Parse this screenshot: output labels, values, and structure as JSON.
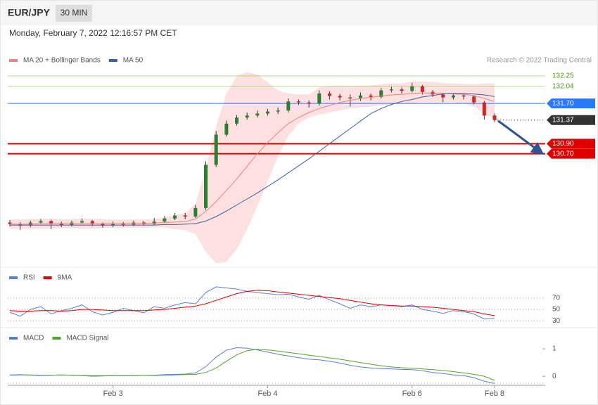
{
  "header": {
    "symbol": "EUR/JPY",
    "interval": "30 MIN",
    "timestamp": "Monday, February 7, 2022 12:16:57 PM CET"
  },
  "chart_data": [
    {
      "type": "candlestick",
      "source": "Research © 2022 Trading Central",
      "ylim": [
        128.47,
        132.71
      ],
      "up_color": "#2e7d32",
      "down_color": "#c62828",
      "wick_color": "#333333",
      "open": [
        129.33,
        129.3,
        129.27,
        129.33,
        129.36,
        129.31,
        129.28,
        129.33,
        129.36,
        129.3,
        129.27,
        129.31,
        129.29,
        129.33,
        129.3,
        129.35,
        129.41,
        129.47,
        129.45,
        129.62,
        130.48,
        131.08,
        131.3,
        131.42,
        131.46,
        131.5,
        131.54,
        131.56,
        131.74,
        131.72,
        131.7,
        131.9,
        131.85,
        131.82,
        131.8,
        131.86,
        131.83,
        131.96,
        131.98,
        131.95,
        132.04,
        131.93,
        131.88,
        131.82,
        131.86,
        131.84,
        131.72,
        131.46
      ],
      "high": [
        129.38,
        129.34,
        129.37,
        129.4,
        129.39,
        129.35,
        129.37,
        129.41,
        129.38,
        129.33,
        129.35,
        129.34,
        129.37,
        129.36,
        129.42,
        129.46,
        129.52,
        129.52,
        129.68,
        130.55,
        131.15,
        131.36,
        131.47,
        131.52,
        131.56,
        131.59,
        131.62,
        131.8,
        131.78,
        131.76,
        131.96,
        131.94,
        131.89,
        131.88,
        131.92,
        131.9,
        132.01,
        132.03,
        132.02,
        132.11,
        132.07,
        131.97,
        131.91,
        131.9,
        131.89,
        131.87,
        131.75,
        131.5
      ],
      "low": [
        129.25,
        129.18,
        129.24,
        129.3,
        129.2,
        129.24,
        129.25,
        129.3,
        129.26,
        129.23,
        129.24,
        129.25,
        129.26,
        129.27,
        129.28,
        129.33,
        129.38,
        129.4,
        129.42,
        129.58,
        130.44,
        131.04,
        131.26,
        131.38,
        131.42,
        131.46,
        131.49,
        131.52,
        131.67,
        131.62,
        131.66,
        131.78,
        131.76,
        131.64,
        131.75,
        131.76,
        131.8,
        131.92,
        131.9,
        131.92,
        131.88,
        131.83,
        131.72,
        131.78,
        131.78,
        131.68,
        131.38,
        131.33
      ],
      "close": [
        129.3,
        129.27,
        129.33,
        129.36,
        129.31,
        129.28,
        129.33,
        129.36,
        129.3,
        129.27,
        129.31,
        129.29,
        129.33,
        129.3,
        129.35,
        129.41,
        129.47,
        129.45,
        129.62,
        130.48,
        131.08,
        131.3,
        131.42,
        131.46,
        131.5,
        131.54,
        131.56,
        131.74,
        131.72,
        131.7,
        131.9,
        131.85,
        131.82,
        131.8,
        131.86,
        131.83,
        131.96,
        131.98,
        131.95,
        132.04,
        131.93,
        131.88,
        131.82,
        131.86,
        131.84,
        131.72,
        131.46,
        131.37
      ],
      "series": [
        {
          "name": "MA 20 + Bollinger Bands",
          "color": "#f08080",
          "band_color": "#fde0e0",
          "values": [
            129.3,
            129.3,
            129.3,
            129.31,
            129.31,
            129.31,
            129.31,
            129.31,
            129.31,
            129.31,
            129.31,
            129.31,
            129.31,
            129.31,
            129.32,
            129.33,
            129.34,
            129.35,
            129.4,
            129.55,
            129.75,
            129.97,
            130.2,
            130.45,
            130.7,
            130.92,
            131.12,
            131.3,
            131.42,
            131.52,
            131.6,
            131.66,
            131.72,
            131.76,
            131.8,
            131.82,
            131.85,
            131.87,
            131.88,
            131.9,
            131.91,
            131.91,
            131.9,
            131.89,
            131.88,
            131.86,
            131.8,
            131.74
          ],
          "upper": [
            129.4,
            129.39,
            129.4,
            129.41,
            129.41,
            129.4,
            129.4,
            129.41,
            129.41,
            129.4,
            129.39,
            129.39,
            129.39,
            129.39,
            129.4,
            129.43,
            129.48,
            129.52,
            129.7,
            130.4,
            131.25,
            131.9,
            132.25,
            132.32,
            132.28,
            132.12,
            131.96,
            131.9,
            131.88,
            131.88,
            132.02,
            132.05,
            132.06,
            132.05,
            132.06,
            132.06,
            132.08,
            132.1,
            132.1,
            132.14,
            132.14,
            132.13,
            132.11,
            132.1,
            132.09,
            132.08,
            132.1,
            132.1
          ],
          "lower": [
            129.2,
            129.21,
            129.2,
            129.21,
            129.21,
            129.22,
            129.22,
            129.21,
            129.21,
            129.22,
            129.23,
            129.23,
            129.23,
            129.23,
            129.24,
            129.23,
            129.2,
            129.18,
            129.1,
            128.75,
            128.52,
            128.55,
            128.8,
            129.2,
            129.65,
            130.15,
            130.65,
            131.05,
            131.3,
            131.42,
            131.48,
            131.52,
            131.56,
            131.6,
            131.62,
            131.64,
            131.66,
            131.68,
            131.7,
            131.7,
            131.72,
            131.72,
            131.72,
            131.72,
            131.7,
            131.64,
            131.5,
            131.4
          ]
        },
        {
          "name": "MA 50",
          "color": "#3a5f9a",
          "values": [
            129.28,
            129.28,
            129.28,
            129.28,
            129.28,
            129.28,
            129.28,
            129.28,
            129.28,
            129.28,
            129.28,
            129.28,
            129.28,
            129.28,
            129.28,
            129.29,
            129.29,
            129.3,
            129.31,
            129.36,
            129.45,
            129.56,
            129.68,
            129.8,
            129.92,
            130.05,
            130.18,
            130.32,
            130.46,
            130.6,
            130.75,
            130.9,
            131.05,
            131.2,
            131.35,
            131.5,
            131.6,
            131.68,
            131.74,
            131.78,
            131.83,
            131.86,
            131.89,
            131.9,
            131.9,
            131.89,
            131.87,
            131.84
          ]
        }
      ],
      "levels": [
        {
          "value": 132.25,
          "color": "#8bc34a",
          "label_style": "plain"
        },
        {
          "value": 132.04,
          "color": "#8bc34a",
          "label_style": "plain"
        },
        {
          "value": 131.7,
          "label": "131.70",
          "color": "#2979ff",
          "label_style": "box"
        },
        {
          "value": 130.9,
          "label": "130.90",
          "color": "#e00000",
          "label_style": "box"
        },
        {
          "value": 130.7,
          "label": "130.70",
          "color": "#e00000",
          "label_style": "box"
        }
      ],
      "last_color": "#333333",
      "arrow_color": "#2d5590"
    },
    {
      "type": "line",
      "ylim": [
        19,
        121
      ],
      "yticks": [
        30,
        50,
        70
      ],
      "grid": true,
      "series": [
        {
          "name": "RSI",
          "color": "#5b7fd6",
          "values": [
            45,
            38,
            50,
            55,
            42,
            48,
            52,
            58,
            46,
            40,
            45,
            52,
            48,
            44,
            55,
            52,
            58,
            62,
            60,
            80,
            90,
            88,
            86,
            82,
            80,
            78,
            76,
            77,
            72,
            68,
            75,
            67,
            60,
            52,
            58,
            55,
            58,
            57,
            55,
            58,
            50,
            47,
            43,
            48,
            46,
            42,
            33,
            34
          ]
        },
        {
          "name": "9MA",
          "color": "#e00000",
          "values": [
            48,
            47,
            47,
            48,
            48,
            47,
            48,
            50,
            50,
            49,
            48,
            48,
            48,
            48,
            49,
            50,
            52,
            54,
            56,
            60,
            66,
            72,
            78,
            82,
            84,
            83,
            81,
            79,
            77,
            75,
            73,
            71,
            69,
            66,
            63,
            60,
            58,
            57,
            56,
            56,
            55,
            54,
            52,
            50,
            48,
            46,
            42,
            39
          ]
        }
      ]
    },
    {
      "type": "line",
      "ylim": [
        -0.33,
        1.72
      ],
      "yticks": [
        0,
        1
      ],
      "grid": false,
      "x": [
        null,
        null,
        null,
        null,
        null,
        null,
        null,
        null,
        null,
        null,
        "Feb 3",
        null,
        null,
        null,
        null,
        null,
        null,
        null,
        null,
        null,
        null,
        null,
        null,
        null,
        null,
        "Feb 4",
        null,
        null,
        null,
        null,
        null,
        null,
        null,
        null,
        null,
        null,
        null,
        null,
        null,
        "Feb 6",
        null,
        null,
        null,
        null,
        null,
        null,
        null,
        "Feb 8"
      ],
      "series": [
        {
          "name": "MACD",
          "color": "#5b7fd6",
          "values": [
            0.05,
            0.06,
            0.04,
            0.03,
            0.04,
            0.05,
            0.04,
            0.02,
            0.0,
            0.01,
            0.02,
            0.03,
            0.02,
            0.03,
            0.04,
            0.06,
            0.07,
            0.08,
            0.12,
            0.35,
            0.7,
            0.95,
            1.04,
            1.02,
            0.96,
            0.88,
            0.8,
            0.74,
            0.68,
            0.62,
            0.6,
            0.55,
            0.48,
            0.4,
            0.34,
            0.3,
            0.28,
            0.27,
            0.25,
            0.24,
            0.2,
            0.14,
            0.1,
            0.05,
            0.02,
            -0.05,
            -0.18,
            -0.26
          ]
        },
        {
          "name": "MACD Signal",
          "color": "#5aa02c",
          "values": [
            0.04,
            0.05,
            0.05,
            0.04,
            0.04,
            0.05,
            0.04,
            0.03,
            0.02,
            0.02,
            0.02,
            0.02,
            0.02,
            0.03,
            0.03,
            0.04,
            0.05,
            0.06,
            0.07,
            0.14,
            0.3,
            0.55,
            0.78,
            0.93,
            0.98,
            0.96,
            0.92,
            0.87,
            0.82,
            0.77,
            0.72,
            0.67,
            0.62,
            0.56,
            0.5,
            0.44,
            0.38,
            0.34,
            0.31,
            0.29,
            0.27,
            0.24,
            0.21,
            0.17,
            0.12,
            0.07,
            0.0,
            -0.15
          ]
        }
      ]
    }
  ]
}
